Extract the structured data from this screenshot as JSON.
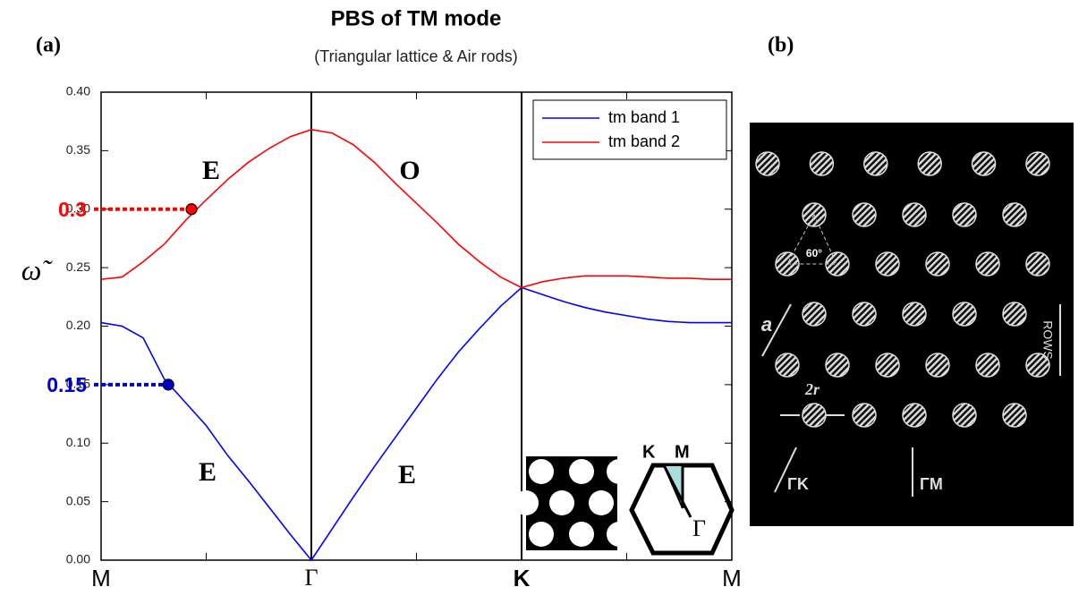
{
  "panel_a_label": "(a)",
  "panel_b": {
    "label": "(b)",
    "angle_label": "60°",
    "lattice_constant_label": "a",
    "diameter_label": "2r",
    "rows_label": "ROWS",
    "direction_labels": [
      "ΓK",
      "ΓM"
    ]
  },
  "chart_data": {
    "type": "line",
    "title": "PBS of TM mode",
    "subtitle": "(Triangular lattice & Air rods)",
    "y_label": "ω̃",
    "x": [
      0,
      0.1,
      0.2,
      0.3,
      0.4,
      0.5,
      0.6,
      0.7,
      0.8,
      0.9,
      1.0,
      1.1,
      1.2,
      1.3,
      1.4,
      1.5,
      1.6,
      1.7,
      1.8,
      1.9,
      2.0,
      2.1,
      2.2,
      2.3,
      2.4,
      2.5,
      2.6,
      2.7,
      2.8,
      2.9,
      3.0
    ],
    "series": [
      {
        "name": "tm band 1",
        "color": "#0000ff",
        "values": [
          0.203,
          0.2,
          0.19,
          0.155,
          0.135,
          0.115,
          0.09,
          0.068,
          0.045,
          0.022,
          0,
          0.027,
          0.054,
          0.08,
          0.105,
          0.13,
          0.155,
          0.178,
          0.198,
          0.217,
          0.233,
          0.227,
          0.221,
          0.216,
          0.212,
          0.209,
          0.206,
          0.204,
          0.203,
          0.203,
          0.203
        ]
      },
      {
        "name": "tm band 2",
        "color": "#ff0000",
        "values": [
          0.24,
          0.242,
          0.255,
          0.27,
          0.29,
          0.308,
          0.325,
          0.34,
          0.352,
          0.362,
          0.368,
          0.365,
          0.355,
          0.34,
          0.322,
          0.305,
          0.288,
          0.27,
          0.255,
          0.242,
          0.233,
          0.238,
          0.241,
          0.243,
          0.243,
          0.243,
          0.242,
          0.241,
          0.241,
          0.24,
          0.24
        ]
      }
    ],
    "xlim": [
      0,
      3
    ],
    "ylim": [
      0,
      0.4
    ],
    "xticks": [
      {
        "value": 0,
        "label": "M"
      },
      {
        "value": 1,
        "label": "Γ"
      },
      {
        "value": 2,
        "label": "K"
      },
      {
        "value": 3,
        "label": "M"
      }
    ],
    "xminor_ticks": [
      0.5,
      1.5,
      2.5
    ],
    "yticks": [
      {
        "value": 0,
        "label": "0.00"
      },
      {
        "value": 0.05,
        "label": "0.05"
      },
      {
        "value": 0.1,
        "label": "0.10"
      },
      {
        "value": 0.15,
        "label": "0.15"
      },
      {
        "value": 0.2,
        "label": "0.20"
      },
      {
        "value": 0.25,
        "label": "0.25"
      },
      {
        "value": 0.3,
        "label": "0.30"
      },
      {
        "value": 0.35,
        "label": "0.35"
      },
      {
        "value": 0.4,
        "label": "0.40"
      }
    ],
    "legend": "upper right",
    "highlights": [
      {
        "x": 0.43,
        "y": 0.3,
        "label": "0.3",
        "color": "#ff0000"
      },
      {
        "x": 0.32,
        "y": 0.15,
        "label": "0.15",
        "color": "#0000cc"
      }
    ],
    "annotations": [
      "E",
      "O",
      "E",
      "E"
    ],
    "inset_labels": [
      "K",
      "M",
      "Γ"
    ]
  }
}
